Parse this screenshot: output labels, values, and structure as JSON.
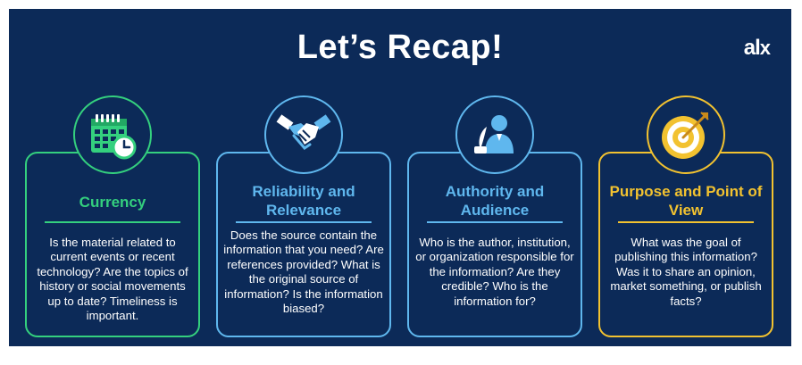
{
  "header": {
    "title": "Let’s Recap!",
    "logo_text": "al",
    "logo_mark": "x"
  },
  "cards": [
    {
      "icon": "calendar-clock-icon",
      "title": "Currency",
      "body": "Is the material related to current events or recent technology? Are the topics of history or social movements up to date? Timeliness is important.",
      "accent": "#34d07e"
    },
    {
      "icon": "handshake-icon",
      "title": "Reliability and Relevance",
      "body": "Does the source contain the information that you need? Are references provided? What is the original source of information? Is the information biased?",
      "accent": "#5fb7ee"
    },
    {
      "icon": "author-quill-icon",
      "title": "Authority and Audience",
      "body": "Who is the author, institution, or organization responsible for the information? Are they credible? Who is the information for?",
      "accent": "#5fb7ee"
    },
    {
      "icon": "target-arrow-icon",
      "title": "Purpose and Point of View",
      "body": "What was the goal of publishing this information? Was it to share an opinion, market something, or publish facts?",
      "accent": "#f2c230"
    }
  ],
  "colors": {
    "background": "#0c2a58",
    "green": "#34d07e",
    "blue": "#5fb7ee",
    "gold": "#f2c230"
  }
}
